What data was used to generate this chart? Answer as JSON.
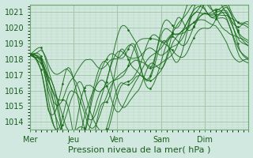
{
  "xlabel": "Pression niveau de la mer( hPa )",
  "bg_color": "#d0e8e0",
  "grid_color_major": "#a8c8a8",
  "grid_color_minor": "#b8d8b8",
  "line_color": "#1a6b1a",
  "ylim": [
    1013.5,
    1021.5
  ],
  "yticks": [
    1014,
    1015,
    1016,
    1017,
    1018,
    1019,
    1020,
    1021
  ],
  "day_labels": [
    "Mer",
    "Jeu",
    "Ven",
    "Sam",
    "Dim"
  ],
  "day_tick_positions": [
    0,
    24,
    48,
    72,
    96
  ],
  "xlim": [
    0,
    120
  ],
  "xlabel_fontsize": 8,
  "tick_fontsize": 7,
  "n_members": 11
}
